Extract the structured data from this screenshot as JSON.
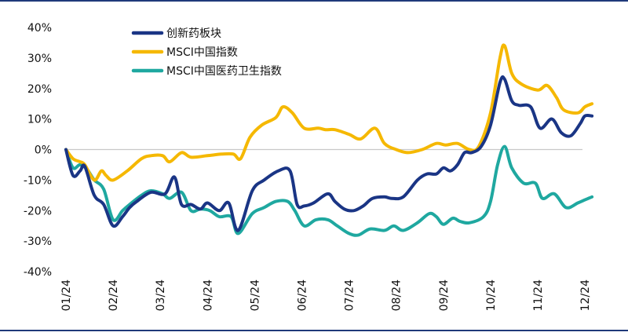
{
  "chart_data": {
    "type": "line",
    "categories": [
      "01/24",
      "02/24",
      "03/24",
      "04/24",
      "05/24",
      "06/24",
      "07/24",
      "08/24",
      "09/24",
      "10/24",
      "11/24",
      "12/24"
    ],
    "ylim": [
      -40,
      40
    ],
    "yticks": [
      40,
      30,
      20,
      10,
      0,
      -10,
      -20,
      -30,
      -40
    ],
    "ytick_labels": [
      "40%",
      "30%",
      "20%",
      "10%",
      "0%",
      "-10%",
      "-20%",
      "-30%",
      "-40%"
    ],
    "legend_position": "top-left",
    "grid": false,
    "series": [
      {
        "name": "创新药板块",
        "color": "#1a3585",
        "points": [
          [
            0,
            0
          ],
          [
            0.15,
            -8.5
          ],
          [
            0.3,
            -7
          ],
          [
            0.4,
            -5.5
          ],
          [
            0.6,
            -15
          ],
          [
            0.8,
            -18
          ],
          [
            1.0,
            -25
          ],
          [
            1.2,
            -22
          ],
          [
            1.35,
            -19
          ],
          [
            1.5,
            -17
          ],
          [
            1.8,
            -14
          ],
          [
            2.1,
            -14.5
          ],
          [
            2.3,
            -9
          ],
          [
            2.45,
            -18
          ],
          [
            2.65,
            -18
          ],
          [
            2.85,
            -19.5
          ],
          [
            3.0,
            -17.5
          ],
          [
            3.25,
            -20
          ],
          [
            3.45,
            -17.5
          ],
          [
            3.65,
            -26.5
          ],
          [
            3.95,
            -13.5
          ],
          [
            4.2,
            -10
          ],
          [
            4.5,
            -7
          ],
          [
            4.75,
            -7
          ],
          [
            4.9,
            -18
          ],
          [
            5.05,
            -18.5
          ],
          [
            5.25,
            -17.5
          ],
          [
            5.55,
            -14.5
          ],
          [
            5.7,
            -17
          ],
          [
            5.9,
            -19.5
          ],
          [
            6.1,
            -20
          ],
          [
            6.3,
            -18.5
          ],
          [
            6.5,
            -16
          ],
          [
            6.75,
            -15.5
          ],
          [
            6.9,
            -16
          ],
          [
            7.15,
            -15.5
          ],
          [
            7.45,
            -10
          ],
          [
            7.65,
            -8
          ],
          [
            7.85,
            -8
          ],
          [
            8.0,
            -6
          ],
          [
            8.15,
            -7
          ],
          [
            8.3,
            -5
          ],
          [
            8.45,
            -1
          ],
          [
            8.6,
            -1
          ],
          [
            8.8,
            1
          ],
          [
            9.0,
            8
          ],
          [
            9.2,
            22
          ],
          [
            9.3,
            23
          ],
          [
            9.45,
            16
          ],
          [
            9.6,
            14.5
          ],
          [
            9.85,
            14
          ],
          [
            10.05,
            7
          ],
          [
            10.3,
            10
          ],
          [
            10.5,
            5.5
          ],
          [
            10.7,
            4.5
          ],
          [
            10.9,
            8.5
          ],
          [
            11.0,
            11
          ],
          [
            11.15,
            11
          ]
        ]
      },
      {
        "name": "MSCI中国指数",
        "color": "#f5b800",
        "points": [
          [
            0,
            0
          ],
          [
            0.15,
            -3
          ],
          [
            0.3,
            -4
          ],
          [
            0.4,
            -5
          ],
          [
            0.6,
            -10
          ],
          [
            0.75,
            -7
          ],
          [
            0.85,
            -8.5
          ],
          [
            1.0,
            -10
          ],
          [
            1.3,
            -7
          ],
          [
            1.6,
            -3
          ],
          [
            1.8,
            -2
          ],
          [
            2.05,
            -2
          ],
          [
            2.2,
            -4
          ],
          [
            2.45,
            -1
          ],
          [
            2.65,
            -2.5
          ],
          [
            3.0,
            -2
          ],
          [
            3.3,
            -1.5
          ],
          [
            3.55,
            -1.5
          ],
          [
            3.7,
            -3
          ],
          [
            3.9,
            4
          ],
          [
            4.15,
            8
          ],
          [
            4.45,
            10.5
          ],
          [
            4.6,
            14
          ],
          [
            4.8,
            12
          ],
          [
            5.05,
            7
          ],
          [
            5.35,
            7
          ],
          [
            5.5,
            6.5
          ],
          [
            5.7,
            6.5
          ],
          [
            6.0,
            5
          ],
          [
            6.25,
            3.5
          ],
          [
            6.55,
            7
          ],
          [
            6.75,
            2
          ],
          [
            7.0,
            0
          ],
          [
            7.25,
            -1
          ],
          [
            7.55,
            0
          ],
          [
            7.85,
            2
          ],
          [
            8.05,
            1.5
          ],
          [
            8.3,
            2
          ],
          [
            8.55,
            0
          ],
          [
            8.75,
            1
          ],
          [
            9.0,
            12
          ],
          [
            9.2,
            30
          ],
          [
            9.3,
            34
          ],
          [
            9.45,
            25
          ],
          [
            9.65,
            21.5
          ],
          [
            10.0,
            19.5
          ],
          [
            10.2,
            21
          ],
          [
            10.4,
            17
          ],
          [
            10.55,
            13
          ],
          [
            10.85,
            12
          ],
          [
            11.0,
            14
          ],
          [
            11.15,
            15
          ]
        ]
      },
      {
        "name": "MSCI中国医药卫生指数",
        "color": "#1fa8a0",
        "points": [
          [
            0,
            0
          ],
          [
            0.15,
            -6
          ],
          [
            0.3,
            -5
          ],
          [
            0.45,
            -6.5
          ],
          [
            0.6,
            -10
          ],
          [
            0.8,
            -13
          ],
          [
            1.0,
            -23
          ],
          [
            1.2,
            -20
          ],
          [
            1.35,
            -18
          ],
          [
            1.6,
            -15
          ],
          [
            1.8,
            -13.5
          ],
          [
            2.05,
            -14.5
          ],
          [
            2.2,
            -16
          ],
          [
            2.45,
            -14
          ],
          [
            2.65,
            -20
          ],
          [
            2.85,
            -19.5
          ],
          [
            3.05,
            -20
          ],
          [
            3.25,
            -22
          ],
          [
            3.5,
            -22
          ],
          [
            3.65,
            -27.5
          ],
          [
            3.95,
            -21
          ],
          [
            4.2,
            -19
          ],
          [
            4.45,
            -17
          ],
          [
            4.7,
            -17
          ],
          [
            4.85,
            -20
          ],
          [
            5.05,
            -25
          ],
          [
            5.3,
            -23
          ],
          [
            5.55,
            -23
          ],
          [
            5.75,
            -25
          ],
          [
            6.0,
            -27.5
          ],
          [
            6.2,
            -28
          ],
          [
            6.45,
            -26
          ],
          [
            6.75,
            -26.5
          ],
          [
            6.95,
            -25
          ],
          [
            7.15,
            -26.5
          ],
          [
            7.45,
            -24
          ],
          [
            7.7,
            -21
          ],
          [
            7.85,
            -22
          ],
          [
            8.0,
            -24.5
          ],
          [
            8.2,
            -22.5
          ],
          [
            8.35,
            -23.5
          ],
          [
            8.55,
            -24
          ],
          [
            8.85,
            -22
          ],
          [
            9.0,
            -17
          ],
          [
            9.15,
            -5
          ],
          [
            9.3,
            1
          ],
          [
            9.45,
            -6
          ],
          [
            9.7,
            -11
          ],
          [
            9.95,
            -11
          ],
          [
            10.1,
            -16
          ],
          [
            10.35,
            -14.5
          ],
          [
            10.6,
            -19
          ],
          [
            10.85,
            -17.5
          ],
          [
            11.0,
            -16.5
          ],
          [
            11.15,
            -15.5
          ]
        ]
      }
    ]
  }
}
